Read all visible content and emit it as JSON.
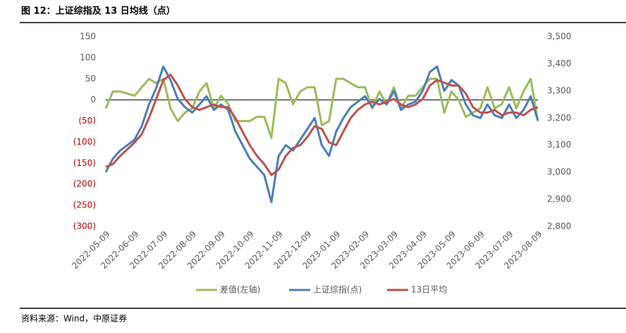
{
  "chart_data": {
    "type": "line",
    "title": "图 12：上证综指及 13 日均线（点）",
    "source": "资料来源：Wind，中原证券",
    "categories": [
      "2022-05-09",
      null,
      null,
      null,
      "2022-06-09",
      null,
      null,
      null,
      "2022-07-09",
      null,
      null,
      null,
      "2022-08-09",
      null,
      null,
      null,
      "2022-09-09",
      null,
      null,
      null,
      "2022-10-09",
      null,
      null,
      null,
      "2022-11-09",
      null,
      null,
      null,
      "2022-12-09",
      null,
      null,
      null,
      "2023-01-09",
      null,
      null,
      null,
      "2023-02-09",
      null,
      null,
      null,
      "2023-03-09",
      null,
      null,
      null,
      "2023-04-09",
      null,
      null,
      null,
      "2023-05-09",
      null,
      null,
      null,
      "2023-06-09",
      null,
      null,
      null,
      "2023-07-09",
      null,
      null,
      null,
      "2023-08-09"
    ],
    "series": [
      {
        "name": "差值(左轴)",
        "color": "#9bbb59",
        "axis": "y",
        "values": [
          -20,
          20,
          20,
          15,
          10,
          30,
          50,
          40,
          50,
          -20,
          -50,
          -30,
          -20,
          20,
          40,
          -20,
          10,
          -10,
          -50,
          -50,
          -50,
          -40,
          -40,
          -90,
          50,
          40,
          -10,
          20,
          30,
          30,
          -60,
          -50,
          50,
          50,
          40,
          30,
          30,
          -20,
          20,
          -10,
          30,
          -20,
          10,
          10,
          30,
          50,
          50,
          -30,
          20,
          0,
          -40,
          -30,
          -20,
          30,
          -20,
          -10,
          30,
          -20,
          20,
          50,
          -50
        ]
      },
      {
        "name": "上证综指(点)",
        "color": "#4a7ebb",
        "axis": "y2",
        "values": [
          3000,
          3050,
          3080,
          3100,
          3120,
          3170,
          3250,
          3310,
          3390,
          3340,
          3270,
          3240,
          3220,
          3250,
          3280,
          3230,
          3250,
          3230,
          3150,
          3100,
          3050,
          3020,
          2990,
          2890,
          3060,
          3100,
          3080,
          3120,
          3160,
          3200,
          3100,
          3060,
          3150,
          3200,
          3240,
          3260,
          3280,
          3240,
          3270,
          3250,
          3300,
          3230,
          3250,
          3260,
          3300,
          3370,
          3390,
          3300,
          3340,
          3320,
          3250,
          3210,
          3200,
          3250,
          3210,
          3200,
          3250,
          3200,
          3230,
          3280,
          3190
        ]
      },
      {
        "name": "13日平均",
        "color": "#c0504d",
        "axis": "y2",
        "values": [
          3020,
          3030,
          3060,
          3085,
          3110,
          3140,
          3200,
          3270,
          3340,
          3360,
          3320,
          3270,
          3240,
          3230,
          3240,
          3250,
          3240,
          3240,
          3200,
          3150,
          3100,
          3060,
          3030,
          2990,
          3010,
          3060,
          3090,
          3100,
          3130,
          3170,
          3160,
          3110,
          3100,
          3150,
          3200,
          3230,
          3250,
          3260,
          3250,
          3260,
          3270,
          3250,
          3240,
          3250,
          3270,
          3320,
          3340,
          3330,
          3320,
          3320,
          3290,
          3240,
          3220,
          3220,
          3230,
          3210,
          3220,
          3220,
          3210,
          3230,
          3240
        ]
      }
    ],
    "ylim": [
      -300,
      150
    ],
    "yticks": [
      {
        "value": -300,
        "label": "(300)"
      },
      {
        "value": -250,
        "label": "(250)"
      },
      {
        "value": -200,
        "label": "(200)"
      },
      {
        "value": -150,
        "label": "(150)"
      },
      {
        "value": -100,
        "label": "(100)"
      },
      {
        "value": -50,
        "label": "(50)"
      },
      0,
      50,
      100,
      150
    ],
    "y2lim": [
      2800,
      3500
    ],
    "y2ticks": [
      {
        "value": 2800,
        "label": "2,800"
      },
      {
        "value": 2900,
        "label": "2,900"
      },
      {
        "value": 3000,
        "label": "3,000"
      },
      {
        "value": 3100,
        "label": "3,100"
      },
      {
        "value": 3200,
        "label": "3,200"
      },
      {
        "value": 3300,
        "label": "3,300"
      },
      {
        "value": 3400,
        "label": "3,400"
      },
      {
        "value": 3500,
        "label": "3,500"
      }
    ],
    "negative_tick_color": "#c00000",
    "legend": "bottom"
  }
}
